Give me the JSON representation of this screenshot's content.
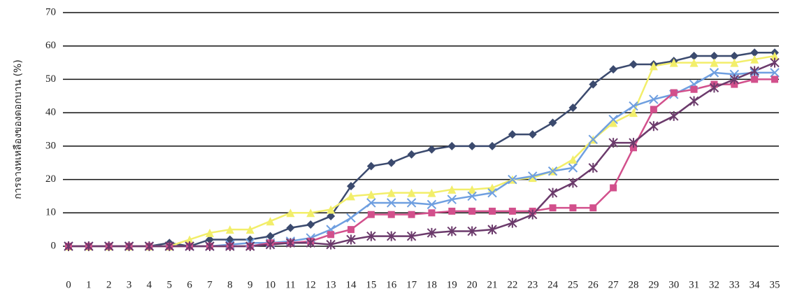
{
  "chart_data": {
    "type": "line",
    "y_label": "การจางหเหลืองของดอกบาน (%)",
    "x": [
      0,
      1,
      2,
      3,
      4,
      5,
      6,
      7,
      8,
      9,
      10,
      11,
      12,
      13,
      14,
      15,
      16,
      17,
      18,
      19,
      20,
      21,
      22,
      23,
      24,
      25,
      26,
      27,
      28,
      29,
      30,
      31,
      32,
      33,
      34,
      35
    ],
    "xlim": [
      0,
      35
    ],
    "xticks": [
      0,
      1,
      2,
      3,
      4,
      5,
      6,
      7,
      8,
      9,
      10,
      11,
      12,
      13,
      14,
      15,
      16,
      17,
      18,
      19,
      20,
      21,
      22,
      23,
      24,
      25,
      26,
      27,
      28,
      29,
      30,
      31,
      32,
      33,
      34,
      35
    ],
    "ylim": [
      0,
      70
    ],
    "yticks": [
      0,
      10,
      20,
      30,
      40,
      50,
      60,
      70
    ],
    "grid": true,
    "series": [
      {
        "color": "#3b4a6e",
        "marker": "diamond",
        "values": [
          0,
          0,
          0,
          0,
          0,
          1,
          0,
          2,
          2,
          2,
          3,
          5.5,
          6.5,
          9,
          18,
          24,
          25,
          27.5,
          29,
          30,
          30,
          30,
          33.5,
          33.5,
          37,
          41.5,
          48.5,
          53,
          54.5,
          54.5,
          55.5,
          57,
          57,
          57,
          58,
          58
        ]
      },
      {
        "color": "#f2ee6a",
        "marker": "triangle",
        "values": [
          0,
          0,
          0,
          0,
          0,
          0,
          2,
          4,
          5,
          5,
          7.5,
          10,
          10,
          11,
          15,
          15.5,
          16,
          16,
          16,
          17,
          17,
          17.5,
          20,
          20.5,
          22.5,
          26,
          32,
          37,
          40,
          54,
          55,
          55,
          55,
          55,
          56,
          57
        ]
      },
      {
        "color": "#6f9fe0",
        "marker": "x",
        "values": [
          0,
          0,
          0,
          0,
          0,
          0,
          0,
          0,
          0.5,
          1,
          1,
          1.5,
          2.5,
          5,
          8.5,
          13,
          13,
          13,
          12.5,
          14,
          15,
          16,
          20,
          21,
          22.5,
          23.5,
          32,
          38,
          42,
          44,
          45.5,
          48.5,
          52,
          51.5,
          52,
          52
        ]
      },
      {
        "color": "#d2508c",
        "marker": "square",
        "values": [
          0,
          0,
          0,
          0,
          0,
          0,
          0,
          0,
          0,
          0,
          1,
          1,
          1.5,
          3.5,
          5,
          9.5,
          9.5,
          9.5,
          10,
          10.5,
          10.5,
          10.5,
          10.5,
          10.5,
          11.5,
          11.5,
          11.5,
          17.5,
          29.5,
          41,
          46,
          47,
          48.5,
          48.5,
          50,
          50
        ]
      },
      {
        "color": "#6b3a6b",
        "marker": "star",
        "values": [
          0,
          0,
          0,
          0,
          0,
          0,
          0,
          0,
          0,
          0,
          0.5,
          1,
          1,
          0.5,
          2,
          3,
          3,
          3,
          4,
          4.5,
          4.5,
          5,
          7,
          9.5,
          16,
          19,
          23.5,
          31,
          31,
          36,
          39,
          43.5,
          47.5,
          50,
          52.5,
          55
        ]
      }
    ]
  }
}
